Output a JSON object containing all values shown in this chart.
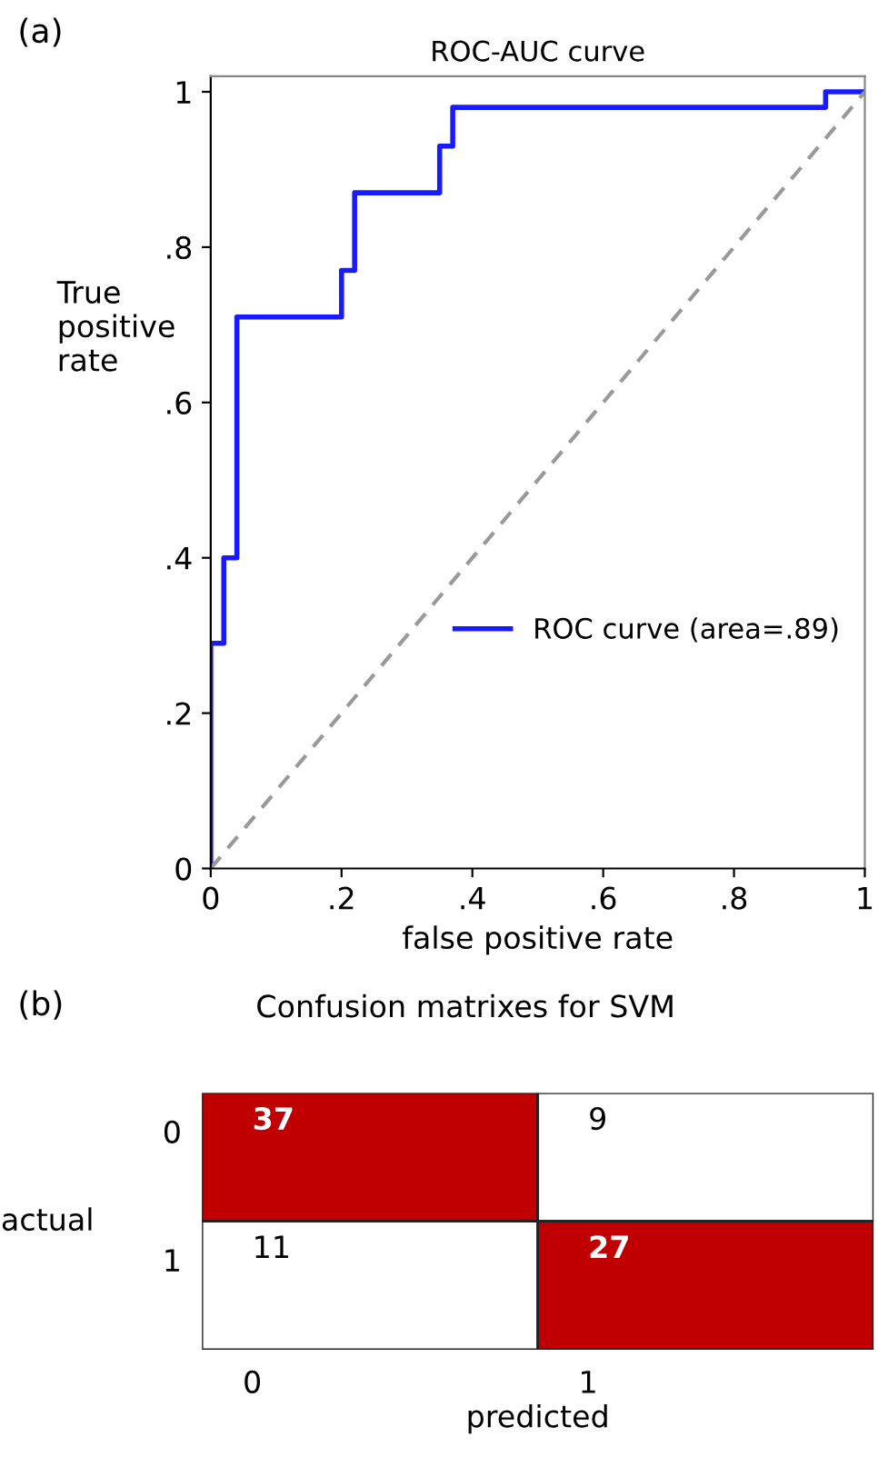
{
  "chart_data": [
    {
      "type": "step",
      "title": "ROC-AUC curve",
      "xlabel": "false positive rate",
      "ylabel": "True positive rate",
      "xlim": [
        0,
        1
      ],
      "ylim": [
        0,
        1.02
      ],
      "xticks": [
        {
          "value": 0,
          "label": "0"
        },
        {
          "value": 0.2,
          "label": ".2"
        },
        {
          "value": 0.4,
          "label": ".4"
        },
        {
          "value": 0.6,
          "label": ".6"
        },
        {
          "value": 0.8,
          "label": ".8"
        },
        {
          "value": 1,
          "label": "1"
        }
      ],
      "yticks": [
        {
          "value": 0,
          "label": "0"
        },
        {
          "value": 0.2,
          "label": ".2"
        },
        {
          "value": 0.4,
          "label": ".4"
        },
        {
          "value": 0.6,
          "label": ".6"
        },
        {
          "value": 0.8,
          "label": ".8"
        },
        {
          "value": 1,
          "label": "1"
        }
      ],
      "series": [
        {
          "name": "ROC curve (area=.89)",
          "color": "#1a1aff",
          "x": [
            0,
            0,
            0.02,
            0.04,
            0.2,
            0.22,
            0.35,
            0.37,
            0.94,
            1
          ],
          "values": [
            0,
            0.29,
            0.4,
            0.71,
            0.77,
            0.87,
            0.93,
            0.98,
            1,
            1
          ]
        },
        {
          "type": "line",
          "color": "#999999",
          "line_style": "dashed",
          "x": [
            0,
            1
          ],
          "values": [
            0,
            1
          ]
        }
      ],
      "legend": "right",
      "grid": false,
      "annotations": [
        "(a)"
      ]
    },
    {
      "type": "heatmap",
      "title": "Confusion matrixes for SVM",
      "xlabel": "predicted",
      "ylabel": "actual",
      "categories": [
        "0",
        "1"
      ],
      "y_categories": [
        "0",
        "1"
      ],
      "cells": [
        [
          37,
          9
        ],
        [
          11,
          27
        ]
      ],
      "colors": [
        "#ffffff",
        "#c00000"
      ],
      "data_labels": true,
      "annotations": [
        "(b)"
      ]
    }
  ]
}
